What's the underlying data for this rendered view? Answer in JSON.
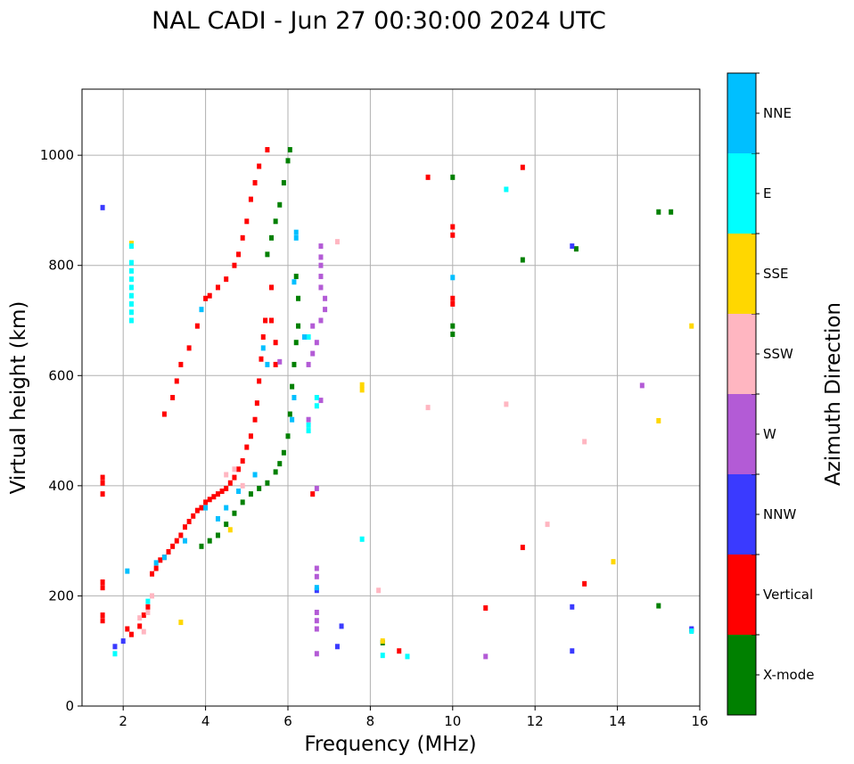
{
  "chart_data": {
    "type": "scatter",
    "title": "NAL CADI - Jun 27 00:30:00 2024 UTC",
    "xlabel": "Frequency (MHz)",
    "ylabel": "Virtual height (km)",
    "xlim": [
      1,
      16
    ],
    "ylim": [
      0,
      1120
    ],
    "xticks": [
      2,
      4,
      6,
      8,
      10,
      12,
      14,
      16
    ],
    "yticks": [
      0,
      200,
      400,
      600,
      800,
      1000
    ],
    "grid": true,
    "colorbar": {
      "label": "Azimuth Direction",
      "categories": [
        {
          "name": "X-mode",
          "color": "#008000"
        },
        {
          "name": "Vertical",
          "color": "#ff0000"
        },
        {
          "name": "NNW",
          "color": "#3a3aff"
        },
        {
          "name": "W",
          "color": "#b35bd6"
        },
        {
          "name": "SSW",
          "color": "#ffb6c1"
        },
        {
          "name": "SSE",
          "color": "#ffd700"
        },
        {
          "name": "E",
          "color": "#00ffff"
        },
        {
          "name": "NNE",
          "color": "#00bfff"
        }
      ]
    },
    "series": [
      {
        "name": "Vertical",
        "color": "#ff0000",
        "points": [
          [
            1.5,
            415
          ],
          [
            1.5,
            405
          ],
          [
            1.5,
            385
          ],
          [
            1.5,
            225
          ],
          [
            1.5,
            215
          ],
          [
            1.5,
            165
          ],
          [
            1.5,
            155
          ],
          [
            2.1,
            140
          ],
          [
            2.2,
            130
          ],
          [
            2.4,
            145
          ],
          [
            2.5,
            165
          ],
          [
            2.6,
            180
          ],
          [
            2.7,
            240
          ],
          [
            2.8,
            250
          ],
          [
            2.9,
            265
          ],
          [
            3.0,
            270
          ],
          [
            3.1,
            280
          ],
          [
            3.2,
            290
          ],
          [
            3.3,
            300
          ],
          [
            3.4,
            310
          ],
          [
            3.5,
            325
          ],
          [
            3.6,
            335
          ],
          [
            3.7,
            345
          ],
          [
            3.8,
            355
          ],
          [
            3.9,
            360
          ],
          [
            4.0,
            370
          ],
          [
            4.1,
            375
          ],
          [
            4.2,
            380
          ],
          [
            4.3,
            385
          ],
          [
            4.4,
            390
          ],
          [
            4.5,
            395
          ],
          [
            4.6,
            405
          ],
          [
            4.7,
            415
          ],
          [
            4.8,
            430
          ],
          [
            4.9,
            445
          ],
          [
            5.0,
            470
          ],
          [
            5.1,
            490
          ],
          [
            5.2,
            520
          ],
          [
            5.25,
            550
          ],
          [
            5.3,
            590
          ],
          [
            5.35,
            630
          ],
          [
            5.4,
            670
          ],
          [
            5.45,
            700
          ],
          [
            3.0,
            530
          ],
          [
            3.2,
            560
          ],
          [
            3.3,
            590
          ],
          [
            3.4,
            620
          ],
          [
            3.6,
            650
          ],
          [
            3.8,
            690
          ],
          [
            4.0,
            740
          ],
          [
            4.1,
            745
          ],
          [
            4.3,
            760
          ],
          [
            4.5,
            775
          ],
          [
            4.7,
            800
          ],
          [
            4.8,
            820
          ],
          [
            4.9,
            850
          ],
          [
            5.0,
            880
          ],
          [
            5.1,
            920
          ],
          [
            5.2,
            950
          ],
          [
            5.3,
            980
          ],
          [
            5.5,
            1010
          ],
          [
            5.6,
            760
          ],
          [
            5.6,
            700
          ],
          [
            5.7,
            660
          ],
          [
            5.7,
            620
          ],
          [
            6.6,
            385
          ],
          [
            9.4,
            960
          ],
          [
            10.0,
            870
          ],
          [
            10.0,
            855
          ],
          [
            10.0,
            740
          ],
          [
            10.0,
            730
          ],
          [
            10.8,
            178
          ],
          [
            11.7,
            978
          ],
          [
            11.7,
            288
          ],
          [
            13.2,
            222
          ],
          [
            8.7,
            100
          ],
          [
            15.8,
            138
          ]
        ]
      },
      {
        "name": "X-mode",
        "color": "#008000",
        "points": [
          [
            3.9,
            290
          ],
          [
            4.1,
            300
          ],
          [
            4.3,
            310
          ],
          [
            4.5,
            330
          ],
          [
            4.7,
            350
          ],
          [
            4.9,
            370
          ],
          [
            5.1,
            385
          ],
          [
            5.3,
            395
          ],
          [
            5.5,
            405
          ],
          [
            5.7,
            425
          ],
          [
            5.8,
            440
          ],
          [
            5.9,
            460
          ],
          [
            6.0,
            490
          ],
          [
            6.05,
            530
          ],
          [
            6.1,
            580
          ],
          [
            6.15,
            620
          ],
          [
            6.2,
            660
          ],
          [
            6.25,
            690
          ],
          [
            5.5,
            820
          ],
          [
            5.6,
            850
          ],
          [
            5.7,
            880
          ],
          [
            5.8,
            910
          ],
          [
            5.9,
            950
          ],
          [
            6.0,
            990
          ],
          [
            6.05,
            1010
          ],
          [
            6.2,
            780
          ],
          [
            6.25,
            740
          ],
          [
            10.0,
            960
          ],
          [
            10.0,
            690
          ],
          [
            10.0,
            675
          ],
          [
            13.0,
            830
          ],
          [
            11.7,
            810
          ],
          [
            15.0,
            897
          ],
          [
            15.3,
            897
          ],
          [
            15.0,
            182
          ],
          [
            8.3,
            115
          ]
        ]
      },
      {
        "name": "NNW",
        "color": "#3a3aff",
        "points": [
          [
            1.5,
            905
          ],
          [
            1.8,
            108
          ],
          [
            2.0,
            118
          ],
          [
            6.7,
            210
          ],
          [
            7.3,
            145
          ],
          [
            7.2,
            108
          ],
          [
            12.9,
            835
          ],
          [
            12.9,
            180
          ],
          [
            12.9,
            100
          ],
          [
            15.8,
            140
          ]
        ]
      },
      {
        "name": "W",
        "color": "#b35bd6",
        "points": [
          [
            6.7,
            95
          ],
          [
            6.7,
            140
          ],
          [
            6.7,
            155
          ],
          [
            6.7,
            170
          ],
          [
            6.7,
            235
          ],
          [
            6.7,
            250
          ],
          [
            6.7,
            395
          ],
          [
            6.5,
            520
          ],
          [
            6.8,
            555
          ],
          [
            6.5,
            620
          ],
          [
            6.6,
            640
          ],
          [
            6.7,
            660
          ],
          [
            6.6,
            690
          ],
          [
            6.8,
            700
          ],
          [
            6.9,
            720
          ],
          [
            6.9,
            740
          ],
          [
            6.8,
            760
          ],
          [
            6.8,
            780
          ],
          [
            6.8,
            800
          ],
          [
            6.8,
            815
          ],
          [
            6.8,
            835
          ],
          [
            5.8,
            625
          ],
          [
            14.6,
            582
          ],
          [
            10.8,
            90
          ]
        ]
      },
      {
        "name": "SSW",
        "color": "#ffb6c1",
        "points": [
          [
            2.4,
            160
          ],
          [
            2.5,
            135
          ],
          [
            2.6,
            170
          ],
          [
            2.7,
            200
          ],
          [
            4.5,
            420
          ],
          [
            4.7,
            430
          ],
          [
            4.9,
            400
          ],
          [
            8.2,
            210
          ],
          [
            9.4,
            542
          ],
          [
            11.3,
            548
          ],
          [
            13.2,
            480
          ],
          [
            12.3,
            330
          ],
          [
            7.2,
            843
          ]
        ]
      },
      {
        "name": "SSE",
        "color": "#ffd700",
        "points": [
          [
            2.2,
            840
          ],
          [
            3.4,
            152
          ],
          [
            7.8,
            583
          ],
          [
            7.8,
            574
          ],
          [
            13.9,
            262
          ],
          [
            15.0,
            518
          ],
          [
            15.8,
            690
          ],
          [
            8.3,
            118
          ],
          [
            4.6,
            320
          ]
        ]
      },
      {
        "name": "E",
        "color": "#00ffff",
        "points": [
          [
            2.2,
            805
          ],
          [
            2.2,
            790
          ],
          [
            2.2,
            775
          ],
          [
            2.2,
            760
          ],
          [
            2.2,
            745
          ],
          [
            2.2,
            730
          ],
          [
            2.2,
            715
          ],
          [
            2.2,
            700
          ],
          [
            2.2,
            835
          ],
          [
            6.7,
            560
          ],
          [
            6.7,
            545
          ],
          [
            6.5,
            510
          ],
          [
            6.5,
            500
          ],
          [
            7.8,
            303
          ],
          [
            8.3,
            92
          ],
          [
            8.9,
            90
          ],
          [
            11.3,
            938
          ],
          [
            15.8,
            136
          ],
          [
            1.8,
            95
          ],
          [
            2.6,
            190
          ],
          [
            6.5,
            670
          ]
        ]
      },
      {
        "name": "NNE",
        "color": "#00bfff",
        "points": [
          [
            2.1,
            245
          ],
          [
            2.8,
            260
          ],
          [
            3.0,
            270
          ],
          [
            3.5,
            300
          ],
          [
            4.0,
            360
          ],
          [
            4.3,
            340
          ],
          [
            4.5,
            360
          ],
          [
            4.8,
            390
          ],
          [
            5.2,
            420
          ],
          [
            5.4,
            650
          ],
          [
            5.5,
            620
          ],
          [
            6.1,
            520
          ],
          [
            6.15,
            560
          ],
          [
            6.2,
            850
          ],
          [
            6.2,
            860
          ],
          [
            6.15,
            770
          ],
          [
            6.4,
            670
          ],
          [
            6.7,
            215
          ],
          [
            10.0,
            778
          ],
          [
            3.9,
            720
          ]
        ]
      }
    ]
  }
}
